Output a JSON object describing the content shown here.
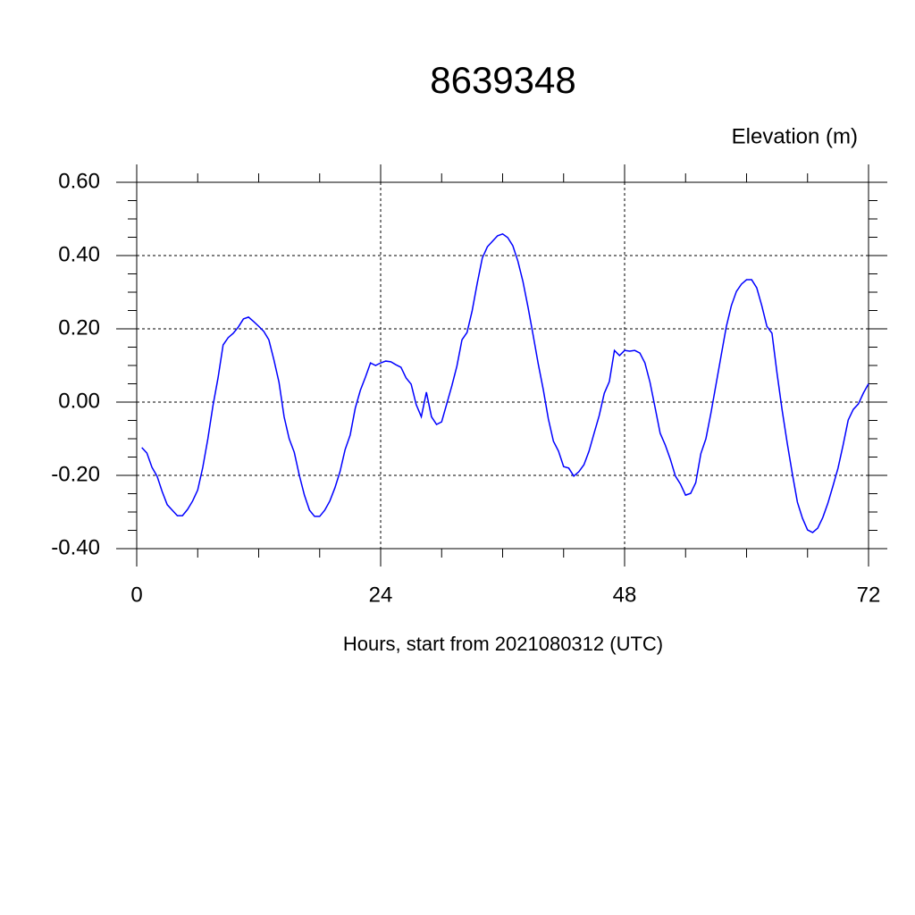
{
  "chart_data": {
    "type": "line",
    "title": "8639348",
    "y_label": "Elevation (m)",
    "x_label": "Hours, start from 2021080312 (UTC)",
    "xlim": [
      0,
      72
    ],
    "xticks": [
      0,
      24,
      48,
      72
    ],
    "ylim": [
      -0.4,
      0.6
    ],
    "yticks": [
      {
        "value": -0.4,
        "label": "-0.40"
      },
      {
        "value": -0.2,
        "label": "-0.20"
      },
      {
        "value": 0,
        "label": "0.00"
      },
      {
        "value": 0.2,
        "label": "0.20"
      },
      {
        "value": 0.4,
        "label": "0.40"
      },
      {
        "value": 0.6,
        "label": "0.60"
      }
    ],
    "grid": true,
    "x": [
      0.5,
      1,
      1.5,
      2,
      2.5,
      3,
      3.5,
      4,
      4.5,
      5,
      5.5,
      6,
      6.5,
      7,
      7.5,
      8,
      8.5,
      9,
      9.5,
      10,
      10.5,
      11,
      11.5,
      12,
      12.5,
      13,
      13.5,
      14,
      14.5,
      15,
      15.5,
      16,
      16.5,
      17,
      17.5,
      18,
      18.5,
      19,
      19.5,
      20,
      20.5,
      21,
      21.5,
      22,
      22.5,
      23,
      23.5,
      24,
      24.5,
      25,
      25.5,
      26,
      26.5,
      27,
      27.5,
      28,
      28.5,
      29,
      29.5,
      30,
      30.5,
      31,
      31.5,
      32,
      32.5,
      33,
      33.5,
      34,
      34.5,
      35,
      35.5,
      36,
      36.5,
      37,
      37.5,
      38,
      38.5,
      39,
      39.5,
      40,
      40.5,
      41,
      41.5,
      42,
      42.5,
      43,
      43.5,
      44,
      44.5,
      45,
      45.5,
      46,
      46.5,
      47,
      47.5,
      48,
      48.5,
      49,
      49.5,
      50,
      50.5,
      51,
      51.5,
      52,
      52.5,
      53,
      53.5,
      54,
      54.5,
      55,
      55.5,
      56,
      56.5,
      57,
      57.5,
      58,
      58.5,
      59,
      59.5,
      60,
      60.5,
      61,
      61.5,
      62,
      62.5,
      63,
      63.5,
      64,
      64.5,
      65,
      65.5,
      66,
      66.5,
      67,
      67.5,
      68,
      68.5,
      69,
      69.5,
      70,
      70.5,
      71,
      71.5,
      72
    ],
    "series": [
      {
        "name": "Elevation",
        "color": "#0000ff",
        "values": [
          -0.124,
          -0.139,
          -0.178,
          -0.202,
          -0.244,
          -0.28,
          -0.295,
          -0.31,
          -0.31,
          -0.293,
          -0.27,
          -0.24,
          -0.178,
          -0.1,
          -0.01,
          0.066,
          0.156,
          0.176,
          0.188,
          0.205,
          0.227,
          0.232,
          0.22,
          0.207,
          0.193,
          0.17,
          0.115,
          0.054,
          -0.04,
          -0.1,
          -0.137,
          -0.2,
          -0.254,
          -0.295,
          -0.312,
          -0.312,
          -0.295,
          -0.27,
          -0.234,
          -0.19,
          -0.13,
          -0.09,
          -0.017,
          0.032,
          0.068,
          0.107,
          0.1,
          0.107,
          0.112,
          0.11,
          0.102,
          0.095,
          0.066,
          0.049,
          -0.007,
          -0.04,
          0.027,
          -0.04,
          -0.061,
          -0.054,
          -0.005,
          0.044,
          0.098,
          0.17,
          0.19,
          0.249,
          0.324,
          0.393,
          0.424,
          0.439,
          0.454,
          0.459,
          0.449,
          0.427,
          0.385,
          0.329,
          0.259,
          0.183,
          0.105,
          0.034,
          -0.046,
          -0.107,
          -0.134,
          -0.176,
          -0.18,
          -0.202,
          -0.19,
          -0.171,
          -0.134,
          -0.085,
          -0.037,
          0.024,
          0.056,
          0.141,
          0.127,
          0.141,
          0.139,
          0.141,
          0.134,
          0.107,
          0.054,
          -0.015,
          -0.085,
          -0.117,
          -0.156,
          -0.202,
          -0.224,
          -0.254,
          -0.249,
          -0.22,
          -0.141,
          -0.1,
          -0.029,
          0.049,
          0.127,
          0.205,
          0.263,
          0.302,
          0.322,
          0.334,
          0.334,
          0.312,
          0.263,
          0.207,
          0.188,
          0.078,
          -0.022,
          -0.112,
          -0.195,
          -0.273,
          -0.317,
          -0.349,
          -0.356,
          -0.344,
          -0.315,
          -0.276,
          -0.229,
          -0.18,
          -0.117,
          -0.049,
          -0.02,
          -0.005,
          0.025,
          0.05
        ]
      }
    ]
  }
}
